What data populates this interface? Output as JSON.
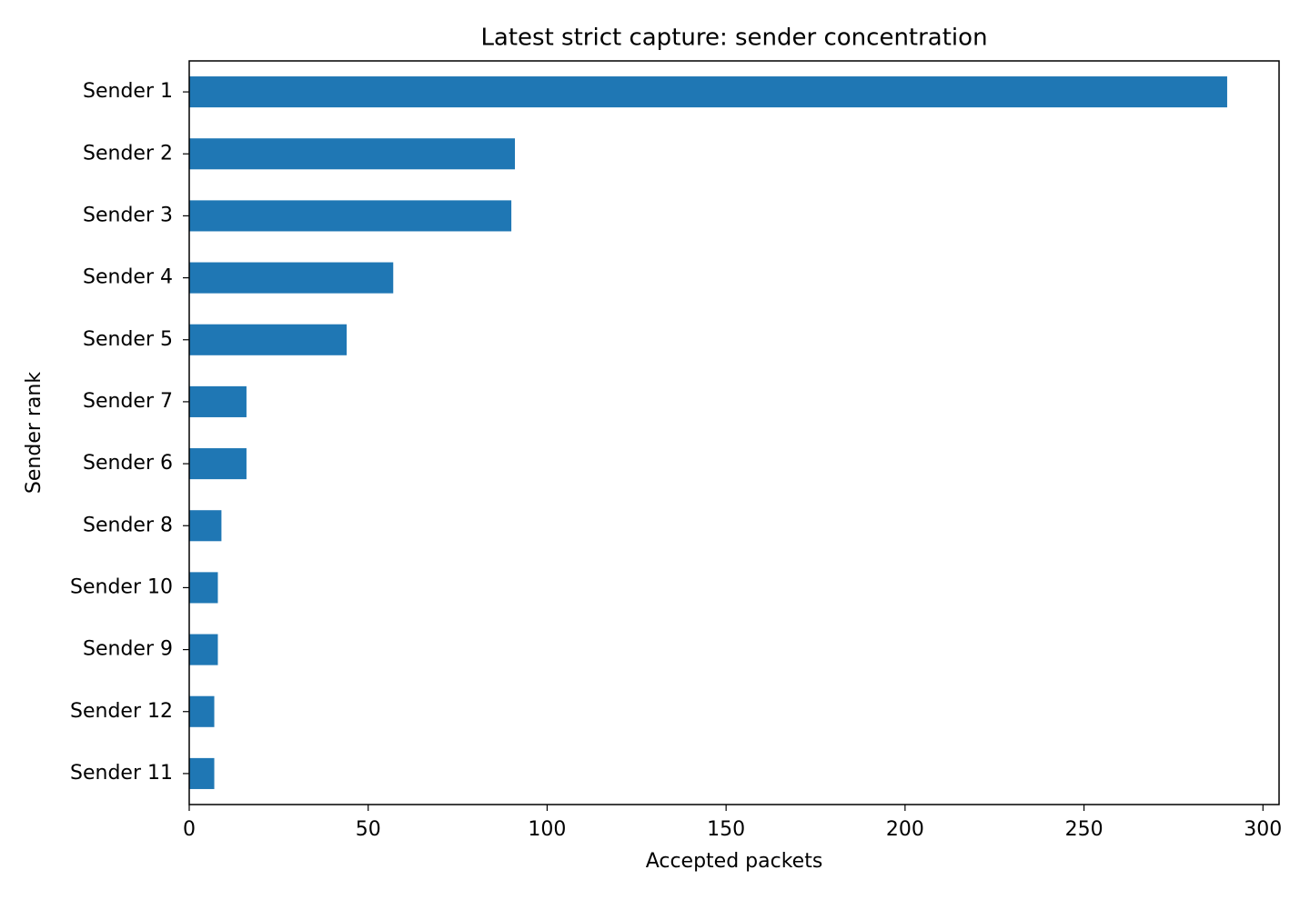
{
  "chart_data": {
    "type": "barh",
    "title": "Latest strict capture: sender concentration",
    "x_label": "Accepted packets",
    "y_label": "Sender rank",
    "categories": [
      "Sender 1",
      "Sender 2",
      "Sender 3",
      "Sender 4",
      "Sender 5",
      "Sender 7",
      "Sender 6",
      "Sender 8",
      "Sender 10",
      "Sender 9",
      "Sender 12",
      "Sender 11"
    ],
    "values": [
      290,
      91,
      90,
      57,
      44,
      16,
      16,
      9,
      8,
      8,
      7,
      7
    ],
    "color": "#1f77b4",
    "xlim": [
      0,
      304.5
    ],
    "xticks": [
      0,
      50,
      100,
      150,
      200,
      250,
      300
    ],
    "grid": false
  }
}
